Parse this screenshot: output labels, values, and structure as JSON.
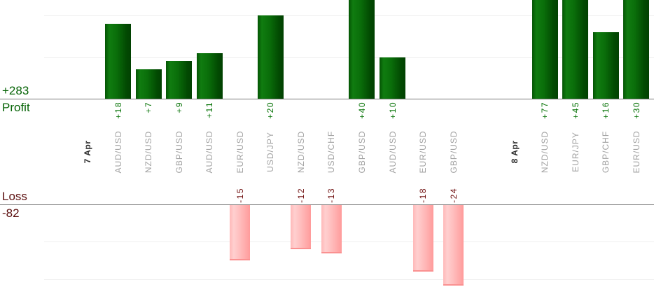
{
  "summary": {
    "profit_total": "+283",
    "profit_label": "Profit",
    "loss_label": "Loss",
    "loss_total": "-82"
  },
  "colors": {
    "profit_text": "#056305",
    "profit_value_text": "#077307",
    "loss_text": "#5a0d0d",
    "loss_value_text": "#6e0d0d",
    "pair_label_text": "#a2a2a2",
    "date_label_text": "#2b2b2b",
    "profit_bar_light": "#107c10",
    "profit_bar_dark": "#014101",
    "loss_bar_light": "#ffcfcf",
    "loss_bar_dark": "#ff9b9b",
    "axis_line": "#7a7a7a",
    "grid_line": "#efefef"
  },
  "chart_data": {
    "type": "bar",
    "description": "Per-trade forex profit (green, upper panel) and loss (pink, lower panel) bars grouped by day; tall bars are clipped by the visible viewport",
    "profit_total": 283,
    "loss_total": -82,
    "grid_step_units": 10,
    "profit_axis": {
      "baseline_value": 0,
      "visible_max_units": 23.7
    },
    "loss_axis": {
      "baseline_value": 0,
      "visible_min_units": -21.8
    },
    "legend": "none",
    "columns": [
      {
        "type": "date",
        "label": "7 Apr"
      },
      {
        "type": "trade",
        "label": "AUD/USD",
        "value": 18,
        "display": "+18"
      },
      {
        "type": "trade",
        "label": "NZD/USD",
        "value": 7,
        "display": "+7"
      },
      {
        "type": "trade",
        "label": "GBP/USD",
        "value": 9,
        "display": "+9"
      },
      {
        "type": "trade",
        "label": "AUD/USD",
        "value": 11,
        "display": "+11"
      },
      {
        "type": "trade",
        "label": "EUR/USD",
        "value": -15,
        "display": "-15"
      },
      {
        "type": "trade",
        "label": "USD/JPY",
        "value": 20,
        "display": "+20"
      },
      {
        "type": "trade",
        "label": "NZD/USD",
        "value": -12,
        "display": "-12"
      },
      {
        "type": "trade",
        "label": "USD/CHF",
        "value": -13,
        "display": "-13"
      },
      {
        "type": "trade",
        "label": "GBP/USD",
        "value": 40,
        "display": "+40"
      },
      {
        "type": "trade",
        "label": "AUD/USD",
        "value": 10,
        "display": "+10"
      },
      {
        "type": "trade",
        "label": "EUR/USD",
        "value": -18,
        "display": "-18"
      },
      {
        "type": "trade",
        "label": "GBP/USD",
        "value": -24,
        "display": "-24"
      },
      {
        "type": "spacer",
        "label": ""
      },
      {
        "type": "date",
        "label": "8 Apr"
      },
      {
        "type": "trade",
        "label": "NZD/USD",
        "value": 77,
        "display": "+77"
      },
      {
        "type": "trade",
        "label": "EUR/JPY",
        "value": 45,
        "display": "+45"
      },
      {
        "type": "trade",
        "label": "GBP/CHF",
        "value": 16,
        "display": "+16"
      },
      {
        "type": "trade",
        "label": "EUR/USD",
        "value": 30,
        "display": "+30"
      }
    ]
  }
}
